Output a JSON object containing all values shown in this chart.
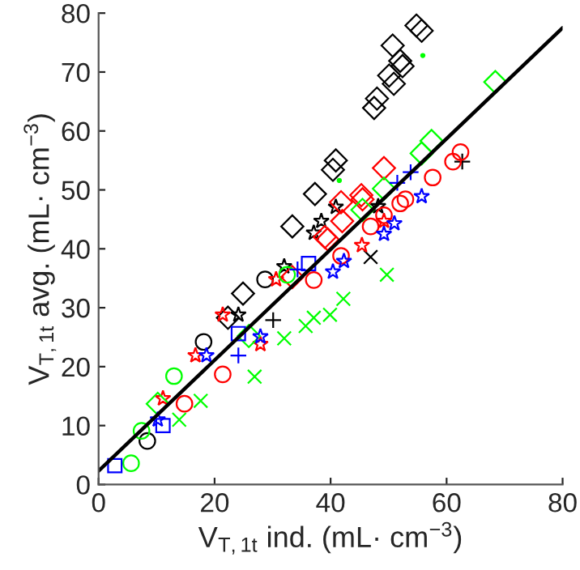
{
  "chart_data": {
    "type": "scatter",
    "xlabel": "V$_{T,1t}$ ind. (mL· cm$^{−3}$)",
    "ylabel": "V$_{T,1t}$ avg. (mL· cm$^{−3}$)",
    "xlim": [
      0,
      80
    ],
    "ylim": [
      0,
      80
    ],
    "xticks": [
      0,
      20,
      40,
      60,
      80
    ],
    "yticks": [
      0,
      10,
      20,
      30,
      40,
      50,
      60,
      70,
      80
    ],
    "grid": false,
    "legend": false,
    "series": [
      {
        "color": "#000000",
        "marker": "diamond",
        "x": [
          54.8,
          55.7,
          50.7,
          52,
          52.4,
          50.1,
          50.9,
          48,
          47.5,
          40.9,
          40.4,
          37.3,
          33.4,
          24.9,
          22.3
        ],
        "values": [
          77.9,
          77,
          74.5,
          71.9,
          71,
          69.4,
          68,
          65.5,
          63.9,
          55,
          53.4,
          49.3,
          43.8,
          32.4,
          28.3
        ]
      },
      {
        "color": "#000000",
        "marker": "circle",
        "x": [
          18.1,
          8.4,
          28.7
        ],
        "values": [
          24.2,
          7.4,
          34.8
        ]
      },
      {
        "color": "#000000",
        "marker": "star",
        "x": [
          40.9,
          38.4,
          37.1,
          32,
          24.1,
          48.2
        ],
        "values": [
          47.1,
          44.7,
          42.7,
          37,
          28.8,
          47.2
        ]
      },
      {
        "color": "#000000",
        "marker": "plus",
        "x": [
          30.1,
          62.7
        ],
        "values": [
          27.9,
          54.8
        ]
      },
      {
        "color": "#000000",
        "marker": "cross",
        "x": [
          46.9
        ],
        "values": [
          38.6
        ]
      },
      {
        "color": "#ff0000",
        "marker": "diamond",
        "x": [
          49.2,
          45.3,
          42,
          41.8,
          45.5,
          39.5,
          33.4,
          39
        ],
        "values": [
          53.7,
          49.1,
          44.7,
          47.9,
          48.4,
          41.6,
          35.2,
          42
        ]
      },
      {
        "color": "#ff0000",
        "marker": "circle",
        "x": [
          62.4,
          61.1,
          57.6,
          52.9,
          52,
          49.2,
          46.9,
          41.8,
          37.1,
          21.4,
          14.8
        ],
        "values": [
          56.4,
          54.8,
          52.1,
          48.4,
          47.7,
          45.7,
          43.8,
          38.8,
          34.7,
          18.7,
          13.7
        ]
      },
      {
        "color": "#ff0000",
        "marker": "star",
        "x": [
          49.2,
          45.4,
          30.6,
          21.4,
          16.7,
          11.1,
          27.9
        ],
        "values": [
          44.7,
          40.6,
          34.8,
          28.8,
          21.9,
          14.6,
          23.8
        ]
      },
      {
        "color": "#00ff00",
        "marker": "diamond",
        "x": [
          68.4,
          57.4,
          55.7,
          49.2,
          45.5,
          25.9,
          10.2
        ],
        "values": [
          68.3,
          58.3,
          56.2,
          50.2,
          46.6,
          25.2,
          13.7
        ]
      },
      {
        "color": "#00ff00",
        "marker": "circle",
        "x": [
          5.6,
          13,
          7.4,
          32.5
        ],
        "values": [
          3.6,
          18.4,
          9.1,
          35.6
        ]
      },
      {
        "color": "#00ff00",
        "marker": "cross",
        "x": [
          49.7,
          42.2,
          39.9,
          37.1,
          35.7,
          32,
          26.9,
          13.9,
          17.6
        ],
        "values": [
          35.6,
          31.5,
          28.8,
          28.3,
          26.9,
          24.8,
          18.3,
          11,
          14.2
        ]
      },
      {
        "color": "#00ff00",
        "marker": "point",
        "x": [
          55.9,
          41.5
        ],
        "values": [
          72.8,
          51.6
        ]
      },
      {
        "color": "#0000ff",
        "marker": "star",
        "x": [
          55.7,
          49.2,
          51,
          42.3,
          40.4,
          27.9,
          18.6,
          10.2
        ],
        "values": [
          48.9,
          42.5,
          44.3,
          37.9,
          36.1,
          25.1,
          21.9,
          11
        ]
      },
      {
        "color": "#0000ff",
        "marker": "plus",
        "x": [
          51.5,
          53.8,
          34.3,
          24.1
        ],
        "values": [
          51.2,
          53,
          36.5,
          21.9
        ]
      },
      {
        "color": "#0000ff",
        "marker": "square",
        "x": [
          2.8,
          11.1,
          36.2,
          24.1
        ],
        "values": [
          3.2,
          10,
          37.5,
          25.6
        ]
      },
      {
        "type": "line",
        "color": "#000000",
        "marker": "none",
        "line_style": "solid",
        "x": [
          0,
          80
        ],
        "values": [
          2.3,
          77.5
        ]
      }
    ]
  }
}
